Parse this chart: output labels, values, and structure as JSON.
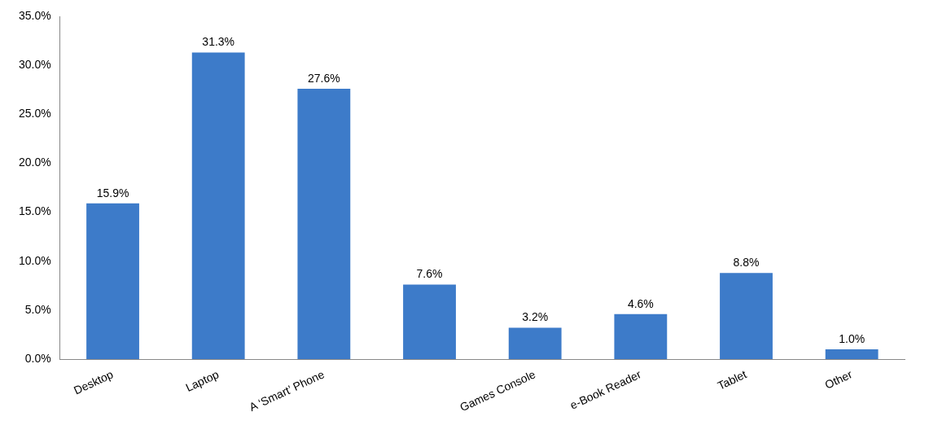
{
  "chart_data": {
    "type": "bar",
    "categories": [
      "Desktop",
      "Laptop",
      "A ‘Smart’ Phone",
      null,
      "Games Console",
      "e-Book Reader",
      "Tablet",
      "Other"
    ],
    "values": [
      15.9,
      31.3,
      27.6,
      7.6,
      3.2,
      4.6,
      8.8,
      1.0
    ],
    "value_labels": [
      "15.9%",
      "31.3%",
      "27.6%",
      "7.6%",
      "3.2%",
      "4.6%",
      "8.8%",
      "1.0%"
    ],
    "color": "#3d7bc9",
    "ylim": [
      0,
      35
    ],
    "yticks": [
      {
        "value": 0,
        "label": "0.0%"
      },
      {
        "value": 5,
        "label": "5.0%"
      },
      {
        "value": 10,
        "label": "10.0%"
      },
      {
        "value": 15,
        "label": "15.0%"
      },
      {
        "value": 20,
        "label": "20.0%"
      },
      {
        "value": 25,
        "label": "25.0%"
      },
      {
        "value": 30,
        "label": "30.0%"
      },
      {
        "value": 35,
        "label": "35.0%"
      }
    ],
    "grid": false,
    "legend": false
  }
}
